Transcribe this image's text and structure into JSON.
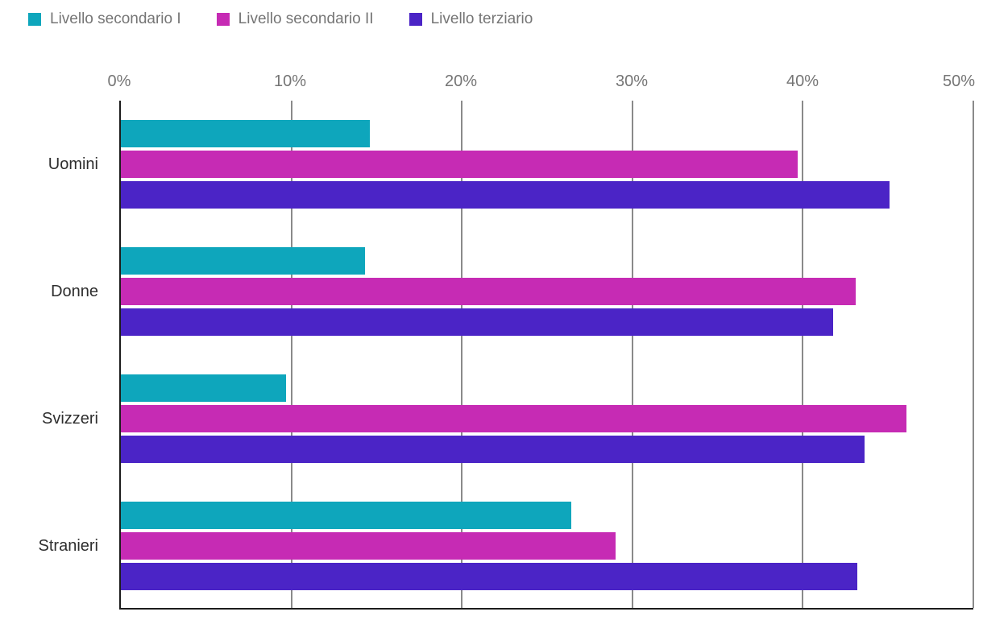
{
  "chart_data": {
    "type": "bar",
    "orientation": "horizontal",
    "title": "",
    "categories": [
      "Uomini",
      "Donne",
      "Svizzeri",
      "Stranieri"
    ],
    "series": [
      {
        "name": "Livello secondario I",
        "color": "#0ea6bc",
        "values": [
          14.6,
          14.3,
          9.7,
          26.4
        ]
      },
      {
        "name": "Livello secondario II",
        "color": "#c62bb4",
        "values": [
          39.7,
          43.1,
          46.1,
          29.0
        ]
      },
      {
        "name": "Livello terziario",
        "color": "#4b24c6",
        "values": [
          45.1,
          41.8,
          43.6,
          43.2
        ]
      }
    ],
    "x_axis": {
      "min": 0,
      "max": 50,
      "ticks": [
        "0%",
        "10%",
        "20%",
        "30%",
        "40%",
        "50%"
      ],
      "tick_values": [
        0,
        10,
        20,
        30,
        40,
        50
      ]
    },
    "grid": true,
    "legend_position": "top",
    "unit": "%"
  },
  "style": {
    "gridline_color": "#8a8a8a",
    "axis_color": "#1c1c1c",
    "tick_label_color": "#757575",
    "category_label_color": "#2e2e2e",
    "legend_text_color": "#757575",
    "background": "#ffffff"
  }
}
